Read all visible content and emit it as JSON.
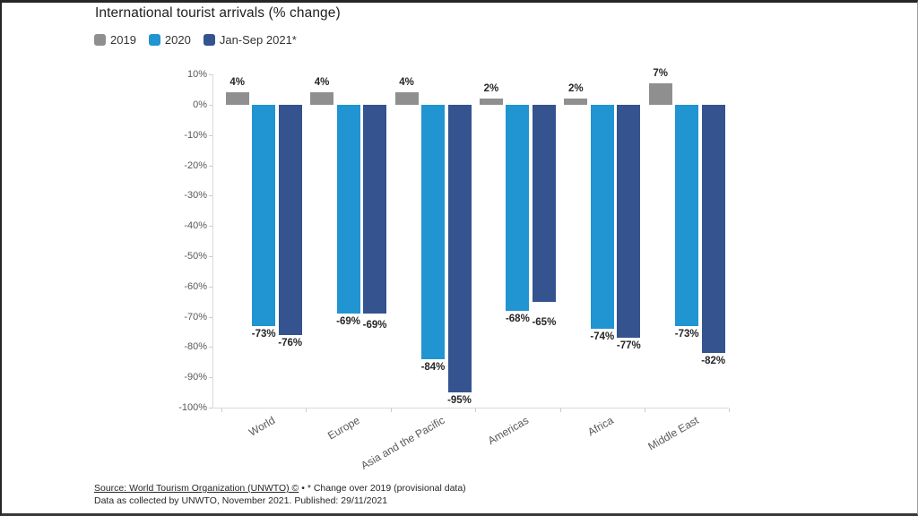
{
  "header": {
    "title": "International tourist arrivals (% change)"
  },
  "legend": {
    "items": [
      {
        "label": "2019",
        "color": "#8f8f8f"
      },
      {
        "label": "2020",
        "color": "#2194d2"
      },
      {
        "label": "Jan-Sep 2021*",
        "color": "#34538f"
      }
    ]
  },
  "chart_data": {
    "type": "bar",
    "title": "International tourist arrivals (% change)",
    "categories": [
      "World",
      "Europe",
      "Asia and the Pacific",
      "Americas",
      "Africa",
      "Middle East"
    ],
    "series": [
      {
        "name": "2019",
        "color": "#8f8f8f",
        "values": [
          4,
          4,
          4,
          2,
          2,
          7
        ]
      },
      {
        "name": "2020",
        "color": "#2194d2",
        "values": [
          -73,
          -69,
          -84,
          -68,
          -74,
          -73
        ]
      },
      {
        "name": "Jan-Sep 2021*",
        "color": "#34538f",
        "values": [
          -76,
          -69,
          -95,
          -65,
          -77,
          -82
        ]
      }
    ],
    "xlabel": "",
    "ylabel": "",
    "ylim": [
      -100,
      10
    ],
    "ytick_step": 10,
    "tick_suffix": "%",
    "value_label_suffix": "%",
    "grid": false,
    "legend_position": "top-left",
    "value_labels": true
  },
  "footer": {
    "source_link": "Source: World Tourism Organization (UNWTO) ©",
    "note": " • * Change over 2019 (provisional data)",
    "meta": "Data as collected by UNWTO, November 2021. Published: 29/11/2021"
  }
}
